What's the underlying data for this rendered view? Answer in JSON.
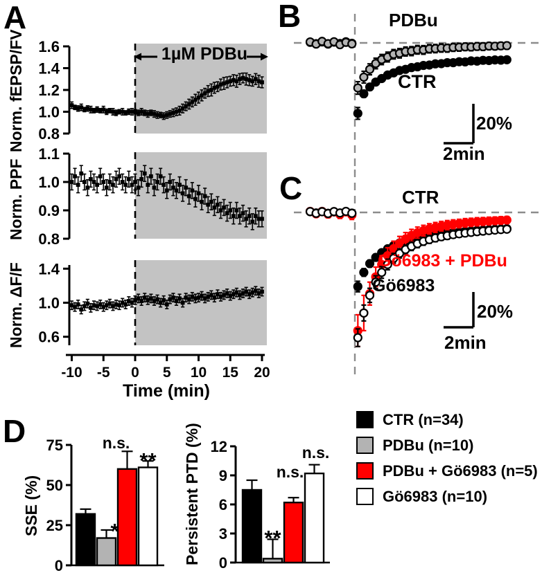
{
  "panels": {
    "a": {
      "letter": "A"
    },
    "b": {
      "letter": "B",
      "trace_labels": {
        "pdbu": "PDBu",
        "ctr": "CTR"
      },
      "scalebar": {
        "pct_label": "20%",
        "min_label": "2min"
      }
    },
    "c": {
      "letter": "C",
      "trace_labels": {
        "ctr": "CTR",
        "go_pdbu": "Gö6983 + PDBu",
        "go": "Gö6983"
      },
      "scalebar": {
        "pct_label": "20%",
        "min_label": "2min"
      }
    },
    "d": {
      "letter": "D"
    }
  },
  "legend": {
    "items": [
      {
        "label": "CTR (n=34)",
        "color": "#000000"
      },
      {
        "label": "PDBu (n=10)",
        "color": "#b3b3b3"
      },
      {
        "label": "PDBu + Gö6983 (n=5)",
        "color": "#ff0000"
      },
      {
        "label": "Gö6983 (n=10)",
        "color": "#ffffff"
      }
    ]
  },
  "colors": {
    "background": "#ffffff",
    "shade": "#c3c3c3",
    "dashed_line": "#8c8c8c",
    "accent_red": "#ff0000",
    "gray_fill": "#b3b3b3"
  },
  "chart_data": [
    {
      "id": "a1",
      "type": "scatter_time",
      "ylabel": "Norm. fEPSP/FV",
      "ylim": [
        0.8,
        1.6
      ],
      "yticks": [
        0.8,
        1.0,
        1.2,
        1.4,
        1.6
      ],
      "xlim": [
        -10.8,
        20.8
      ],
      "treatment_start": 0,
      "treatment_annotation": "1µM PDBu",
      "series": [
        {
          "name": "fEPSP/FV",
          "color": "#000000",
          "t_start": -10,
          "t_step": 0.5,
          "values": [
            1.06,
            1.04,
            1.03,
            1.04,
            1.02,
            1.03,
            1.02,
            1.01,
            1.02,
            1.01,
            1.02,
            1.0,
            1.01,
            1.0,
            0.99,
            1.0,
            1.0,
            0.99,
            1.0,
            1.0,
            1.0,
            0.99,
            1.0,
            0.99,
            0.98,
            0.99,
            0.98,
            0.97,
            0.97,
            0.96,
            0.97,
            0.98,
            0.99,
            1.0,
            1.01,
            1.03,
            1.05,
            1.07,
            1.09,
            1.11,
            1.13,
            1.15,
            1.17,
            1.19,
            1.2,
            1.22,
            1.23,
            1.25,
            1.26,
            1.27,
            1.28,
            1.29,
            1.28,
            1.3,
            1.31,
            1.3,
            1.29,
            1.28,
            1.3,
            1.28,
            1.27
          ],
          "errors": [
            0.03,
            0.02,
            0.025,
            0.03,
            0.02,
            0.025,
            0.03,
            0.02,
            0.025,
            0.02,
            0.03,
            0.025,
            0.02,
            0.03,
            0.025,
            0.02,
            0.03,
            0.02,
            0.025,
            0.03,
            0.02,
            0.025,
            0.03,
            0.025,
            0.03,
            0.025,
            0.03,
            0.03,
            0.025,
            0.03,
            0.03,
            0.03,
            0.035,
            0.035,
            0.04,
            0.04,
            0.04,
            0.045,
            0.045,
            0.05,
            0.05,
            0.05,
            0.045,
            0.05,
            0.055,
            0.05,
            0.045,
            0.05,
            0.055,
            0.05,
            0.045,
            0.05,
            0.055,
            0.05,
            0.045,
            0.055,
            0.05,
            0.045,
            0.05,
            0.055,
            0.05
          ]
        }
      ]
    },
    {
      "id": "a2",
      "type": "scatter_time",
      "ylabel": "Norm. PPF",
      "ylim": [
        0.8,
        1.1
      ],
      "yticks": [
        0.8,
        0.9,
        1.0,
        1.1
      ],
      "xlim": [
        -10.8,
        20.8
      ],
      "treatment_start": 0,
      "series": [
        {
          "name": "PPF",
          "color": "#000000",
          "t_start": -10,
          "t_step": 0.5,
          "error": 0.028,
          "values": [
            1.0,
            1.02,
            0.99,
            1.03,
            1.0,
            0.98,
            1.01,
            1.0,
            0.99,
            1.02,
            1.0,
            0.98,
            1.0,
            0.99,
            1.01,
            1.02,
            1.0,
            0.99,
            1.01,
            0.99,
            1.0,
            0.98,
            1.01,
            1.03,
            0.99,
            1.02,
            0.98,
            1.0,
            1.02,
            0.99,
            0.97,
            1.0,
            0.98,
            0.97,
            0.99,
            0.96,
            0.98,
            0.95,
            0.97,
            0.94,
            0.96,
            0.93,
            0.95,
            0.92,
            0.93,
            0.91,
            0.92,
            0.9,
            0.91,
            0.89,
            0.9,
            0.88,
            0.9,
            0.88,
            0.89,
            0.87,
            0.88,
            0.86,
            0.88,
            0.87,
            0.87
          ]
        }
      ]
    },
    {
      "id": "a3",
      "type": "scatter_time",
      "ylabel": "Norm. ΔF/F",
      "ylim": [
        0.5,
        1.5
      ],
      "yticks": [
        0.6,
        1.0,
        1.4
      ],
      "xlim": [
        -10.8,
        20.8
      ],
      "treatment_start": 0,
      "xticks": [
        -10,
        -5,
        0,
        5,
        10,
        15,
        20
      ],
      "xlabel": "Time (min)",
      "series": [
        {
          "name": "dF/F",
          "color": "#000000",
          "t_start": -10,
          "t_step": 0.5,
          "error": 0.05,
          "values": [
            0.97,
            0.95,
            0.98,
            0.92,
            0.96,
            0.99,
            0.94,
            0.97,
            0.96,
            0.98,
            0.95,
            0.97,
            0.99,
            0.96,
            0.98,
            0.97,
            1.0,
            0.98,
            1.02,
            1.0,
            1.03,
            1.05,
            1.02,
            1.06,
            1.03,
            1.05,
            1.02,
            1.04,
            1.0,
            1.03,
            0.98,
            1.04,
            1.06,
            1.02,
            1.05,
            1.0,
            1.06,
            1.04,
            1.07,
            1.05,
            1.06,
            1.08,
            1.05,
            1.07,
            1.09,
            1.06,
            1.1,
            1.07,
            1.09,
            1.11,
            1.08,
            1.1,
            1.12,
            1.09,
            1.11,
            1.13,
            1.1,
            1.12,
            1.14,
            1.11,
            1.13
          ]
        }
      ]
    },
    {
      "id": "b",
      "type": "recovery",
      "baseline_pct": 0,
      "onset_t": 0,
      "scalebar": {
        "pct": 20,
        "minutes": 2
      },
      "series": [
        {
          "name": "CTR",
          "fill": "#000000",
          "stroke": "#000000",
          "err_color": "#000000",
          "t_start": -3.0,
          "t_step": 0.4,
          "values": [
            0.3,
            -0.4,
            0.5,
            -0.6,
            0.4,
            -0.3,
            0.6,
            -0.2,
            -36,
            -26,
            -22.5,
            -20,
            -18.2,
            -16.4,
            -15.3,
            -14.1,
            -13.5,
            -12.6,
            -12.2,
            -11.5,
            -11.3,
            -10.7,
            -10.6,
            -10.1,
            -10.1,
            -9.6,
            -9.7,
            -9.2,
            -9.3,
            -8.9,
            -9.0,
            -8.7,
            -8.8,
            -8.6
          ],
          "errors": [
            1.0,
            1.0,
            1.0,
            1.0,
            1.0,
            1.0,
            1.0,
            1.0,
            3.0,
            1.8,
            1.7,
            1.6,
            1.6,
            1.5,
            1.5,
            1.5,
            1.4,
            1.4,
            1.4,
            1.3,
            1.3,
            1.3,
            1.3,
            1.2,
            1.2,
            1.2,
            1.2,
            1.2,
            1.1,
            1.1,
            1.1,
            1.1,
            1.0,
            1.0
          ]
        },
        {
          "name": "PDBu",
          "fill": "#b3b3b3",
          "stroke": "#000000",
          "err_color": "#000000",
          "t_start": -3.0,
          "t_step": 0.4,
          "values": [
            0.5,
            -0.6,
            0.8,
            -0.4,
            0.6,
            -0.9,
            0.3,
            -0.5,
            -23,
            -17.5,
            -13.5,
            -10.5,
            -8.5,
            -7.2,
            -5.8,
            -5.3,
            -4.4,
            -4.2,
            -3.5,
            -3.6,
            -3.0,
            -2.9,
            -2.6,
            -2.7,
            -2.3,
            -2.2,
            -2.0,
            -2.1,
            -1.8,
            -1.9,
            -1.6,
            -1.7,
            -1.5,
            -1.4
          ],
          "errors": [
            1.2,
            1.2,
            1.2,
            1.2,
            1.2,
            1.2,
            1.2,
            1.2,
            3.2,
            3.0,
            2.8,
            2.7,
            2.6,
            2.5,
            2.4,
            2.4,
            2.3,
            2.3,
            2.2,
            2.2,
            2.1,
            2.1,
            2.1,
            2.0,
            2.0,
            2.0,
            1.9,
            1.9,
            1.9,
            1.9,
            1.8,
            1.8,
            1.8,
            1.8
          ]
        }
      ]
    },
    {
      "id": "c",
      "type": "recovery",
      "baseline_pct": 0,
      "onset_t": 0,
      "scalebar": {
        "pct": 20,
        "minutes": 2
      },
      "series": [
        {
          "name": "CTR",
          "fill": "#000000",
          "stroke": "#000000",
          "err_color": "#000000",
          "t_start": -3.0,
          "t_step": 0.4,
          "values": [
            0.4,
            -0.3,
            0.6,
            -0.5,
            0.3,
            -0.6,
            0.4,
            -0.4,
            -42,
            -34,
            -29,
            -25.5,
            -22.8,
            -20.6,
            -18.8,
            -17.3,
            -16.1,
            -15.1,
            -14.3,
            -13.6,
            -13.0,
            -12.5,
            -12.0,
            -11.6,
            -11.3,
            -11.0,
            -10.7,
            -10.5,
            -10.2,
            -10.0,
            -9.8,
            -9.6,
            -9.4,
            -9.2
          ],
          "errors": [
            1.0,
            1.0,
            1.0,
            1.0,
            1.0,
            1.0,
            1.0,
            1.0,
            3.0,
            2.2,
            2.0,
            1.9,
            1.8,
            1.7,
            1.7,
            1.6,
            1.6,
            1.5,
            1.5,
            1.5,
            1.4,
            1.4,
            1.4,
            1.3,
            1.3,
            1.3,
            1.3,
            1.2,
            1.2,
            1.2,
            1.2,
            1.2,
            1.1,
            1.1
          ]
        },
        {
          "name": "Gö6983 + PDBu",
          "fill": "#ff0000",
          "stroke": "#ff0000",
          "err_color": "#ff0000",
          "t_start": -3.0,
          "t_step": 0.4,
          "values": [
            0.6,
            -0.8,
            0.5,
            -1.0,
            0.4,
            -1.2,
            0.3,
            -1.5,
            -67,
            -57,
            -46,
            -36.5,
            -29.5,
            -24.5,
            -20.5,
            -17.5,
            -15.0,
            -13.0,
            -11.5,
            -10.3,
            -9.3,
            -8.5,
            -7.8,
            -7.2,
            -6.7,
            -6.3,
            -5.9,
            -5.6,
            -5.3,
            -5.1,
            -4.9,
            -4.7,
            -4.5,
            -4.3
          ],
          "errors": [
            1.5,
            1.8,
            1.5,
            2.0,
            1.6,
            2.2,
            1.8,
            2.5,
            9.0,
            10.0,
            6.5,
            5.5,
            5.0,
            4.5,
            4.2,
            3.9,
            3.6,
            3.4,
            3.2,
            3.0,
            2.9,
            2.8,
            2.7,
            2.6,
            2.5,
            2.4,
            2.4,
            2.3,
            2.3,
            2.2,
            2.2,
            2.1,
            2.1,
            2.0
          ]
        },
        {
          "name": "Gö6983",
          "fill": "#ffffff",
          "stroke": "#000000",
          "err_color": "#000000",
          "t_start": -3.0,
          "t_step": 0.4,
          "values": [
            0.5,
            -0.5,
            0.4,
            -0.6,
            0.5,
            -0.3,
            0.6,
            -0.5,
            -71,
            -57,
            -47,
            -39.5,
            -34,
            -29.5,
            -26,
            -23.2,
            -21,
            -19.2,
            -17.7,
            -16.4,
            -15.4,
            -14.5,
            -13.8,
            -13.2,
            -12.6,
            -12.1,
            -11.7,
            -11.3,
            -10.9,
            -10.6,
            -10.3,
            -10.0,
            -9.7,
            -9.5
          ],
          "errors": [
            1.2,
            1.2,
            1.2,
            1.2,
            1.2,
            1.2,
            1.2,
            1.2,
            5.0,
            4.5,
            4.0,
            3.6,
            3.3,
            3.0,
            2.8,
            2.6,
            2.5,
            2.4,
            2.3,
            2.2,
            2.1,
            2.1,
            2.0,
            2.0,
            1.9,
            1.9,
            1.8,
            1.8,
            1.8,
            1.7,
            1.7,
            1.7,
            1.6,
            1.6
          ]
        }
      ]
    },
    {
      "id": "d1",
      "type": "bar",
      "ylabel": "SSE (%)",
      "ylim": [
        0,
        75
      ],
      "yticks": [
        0,
        25,
        50,
        75
      ],
      "bars": [
        {
          "name": "CTR",
          "value": 32,
          "error": 3,
          "color": "#000000",
          "sig": ""
        },
        {
          "name": "PDBu",
          "value": 17,
          "error": 5,
          "color": "#b3b3b3",
          "sig": "*"
        },
        {
          "name": "PDBu + Gö6983",
          "value": 60,
          "error": 11,
          "color": "#ff0000",
          "sig": "n.s."
        },
        {
          "name": "Gö6983",
          "value": 61,
          "error": 4,
          "color": "#ffffff",
          "sig": "**"
        }
      ]
    },
    {
      "id": "d2",
      "type": "bar",
      "ylabel": "Persistent PTD (%)",
      "ylim": [
        0,
        12
      ],
      "yticks": [
        0,
        3,
        6,
        9,
        12
      ],
      "bars": [
        {
          "name": "CTR",
          "value": 7.5,
          "error": 1.0,
          "color": "#000000",
          "sig": ""
        },
        {
          "name": "PDBu",
          "value": 0.4,
          "error": 2.0,
          "color": "#b3b3b3",
          "sig": "**"
        },
        {
          "name": "PDBu + Gö6983",
          "value": 6.2,
          "error": 0.5,
          "color": "#ff0000",
          "sig": "n.s."
        },
        {
          "name": "Gö6983",
          "value": 9.2,
          "error": 0.9,
          "color": "#ffffff",
          "sig": "n.s."
        }
      ]
    }
  ]
}
